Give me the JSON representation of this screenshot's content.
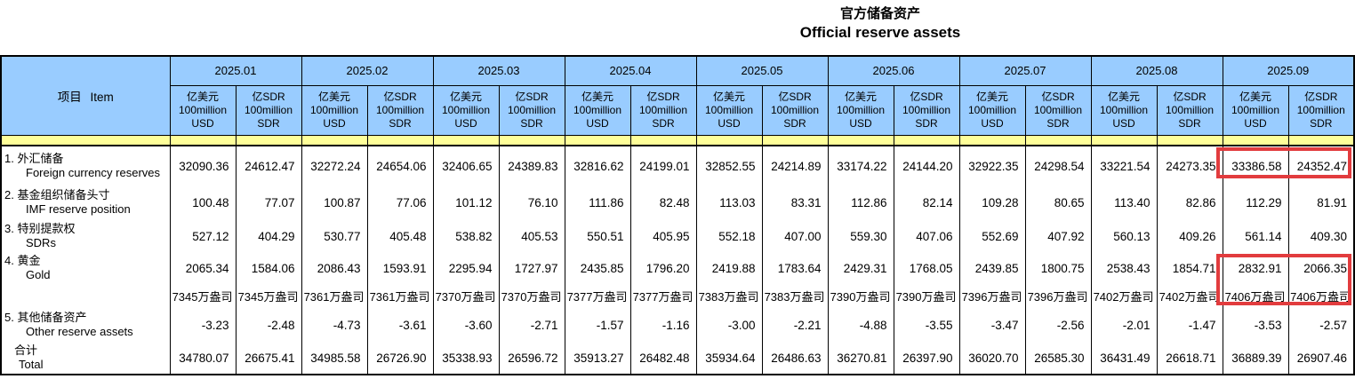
{
  "title": {
    "zh": "官方储备资产",
    "en": "Official reserve assets"
  },
  "colors": {
    "header_bg": "#99ccff",
    "band_bg": "#ffff99",
    "highlight": "#e23c3e",
    "border": "#000000"
  },
  "table": {
    "item_label": "项目 Item",
    "unit_usd": [
      "亿美元",
      "100million",
      "USD"
    ],
    "unit_sdr": [
      "亿SDR",
      "100million",
      "SDR"
    ],
    "months": [
      "2025.01",
      "2025.02",
      "2025.03",
      "2025.04",
      "2025.05",
      "2025.06",
      "2025.07",
      "2025.08",
      "2025.09"
    ],
    "rows": [
      {
        "no": "1.",
        "zh": "外汇储备",
        "en": "Foreign currency reserves",
        "values": [
          [
            "32090.36",
            "24612.47"
          ],
          [
            "32272.24",
            "24654.06"
          ],
          [
            "32406.65",
            "24389.83"
          ],
          [
            "32816.62",
            "24199.01"
          ],
          [
            "32852.55",
            "24214.89"
          ],
          [
            "33174.22",
            "24144.20"
          ],
          [
            "32922.35",
            "24298.54"
          ],
          [
            "33221.54",
            "24273.35"
          ],
          [
            "33386.58",
            "24352.47"
          ]
        ]
      },
      {
        "no": "2.",
        "zh": "基金组织储备头寸",
        "en": "IMF reserve position",
        "values": [
          [
            "100.48",
            "77.07"
          ],
          [
            "100.87",
            "77.06"
          ],
          [
            "101.12",
            "76.10"
          ],
          [
            "111.86",
            "82.48"
          ],
          [
            "113.03",
            "83.31"
          ],
          [
            "112.86",
            "82.14"
          ],
          [
            "109.28",
            "80.65"
          ],
          [
            "113.40",
            "82.86"
          ],
          [
            "112.29",
            "81.91"
          ]
        ]
      },
      {
        "no": "3.",
        "zh": "特别提款权",
        "en": "SDRs",
        "values": [
          [
            "527.12",
            "404.29"
          ],
          [
            "530.77",
            "405.48"
          ],
          [
            "538.82",
            "405.53"
          ],
          [
            "550.51",
            "405.95"
          ],
          [
            "552.18",
            "407.00"
          ],
          [
            "559.30",
            "407.06"
          ],
          [
            "552.69",
            "407.92"
          ],
          [
            "560.13",
            "409.26"
          ],
          [
            "561.14",
            "409.30"
          ]
        ]
      },
      {
        "no": "4.",
        "zh": "黄金",
        "en": "Gold",
        "values": [
          [
            "2065.34",
            "1584.06"
          ],
          [
            "2086.43",
            "1593.91"
          ],
          [
            "2295.94",
            "1727.97"
          ],
          [
            "2435.85",
            "1796.20"
          ],
          [
            "2419.88",
            "1783.64"
          ],
          [
            "2429.31",
            "1768.05"
          ],
          [
            "2439.85",
            "1800.75"
          ],
          [
            "2538.43",
            "1854.71"
          ],
          [
            "2832.91",
            "2066.35"
          ]
        ]
      },
      {
        "no": "",
        "zh": "",
        "en": "",
        "values": [
          [
            "7345万盎司",
            "7345万盎司"
          ],
          [
            "7361万盎司",
            "7361万盎司"
          ],
          [
            "7370万盎司",
            "7370万盎司"
          ],
          [
            "7377万盎司",
            "7377万盎司"
          ],
          [
            "7383万盎司",
            "7383万盎司"
          ],
          [
            "7390万盎司",
            "7390万盎司"
          ],
          [
            "7396万盎司",
            "7396万盎司"
          ],
          [
            "7402万盎司",
            "7402万盎司"
          ],
          [
            "7406万盎司",
            "7406万盎司"
          ]
        ]
      },
      {
        "no": "5.",
        "zh": "其他储备资产",
        "en": "Other reserve assets",
        "values": [
          [
            "-3.23",
            "-2.48"
          ],
          [
            "-4.73",
            "-3.61"
          ],
          [
            "-3.60",
            "-2.71"
          ],
          [
            "-1.57",
            "-1.16"
          ],
          [
            "-3.00",
            "-2.21"
          ],
          [
            "-4.88",
            "-3.55"
          ],
          [
            "-3.47",
            "-2.56"
          ],
          [
            "-2.01",
            "-1.47"
          ],
          [
            "-3.53",
            "-2.57"
          ]
        ]
      },
      {
        "no": "",
        "zh": "合计",
        "en": "Total",
        "values": [
          [
            "34780.07",
            "26675.41"
          ],
          [
            "34985.58",
            "26726.90"
          ],
          [
            "35338.93",
            "26596.72"
          ],
          [
            "35913.27",
            "26482.48"
          ],
          [
            "35934.64",
            "26486.63"
          ],
          [
            "36270.81",
            "26397.90"
          ],
          [
            "36020.70",
            "26585.30"
          ],
          [
            "36431.49",
            "26618.71"
          ],
          [
            "36889.39",
            "26907.46"
          ]
        ]
      }
    ],
    "highlights": [
      {
        "label": "foreign-currency-reserves-2025.09"
      },
      {
        "label": "gold-and-ounces-2025.09"
      }
    ]
  }
}
